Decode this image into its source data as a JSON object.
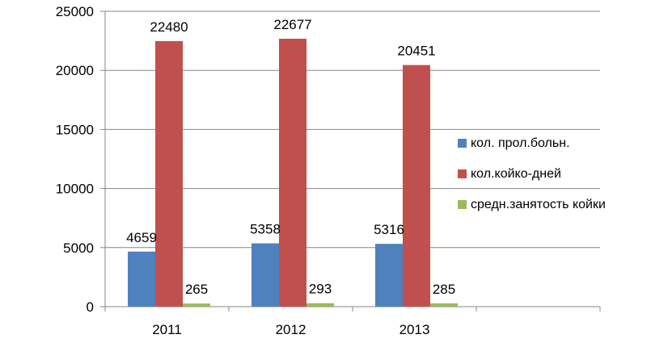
{
  "chart_data": {
    "type": "bar",
    "categories": [
      "2011",
      "2012",
      "2013",
      ""
    ],
    "series": [
      {
        "name": "кол. прол.больн.",
        "color": "#4F81BD",
        "values": [
          4659,
          5358,
          5316,
          null
        ]
      },
      {
        "name": "кол.койко-дней",
        "color": "#C0504D",
        "values": [
          22480,
          22677,
          20451,
          null
        ]
      },
      {
        "name": "средн.занятость койки",
        "color": "#9BBB59",
        "values": [
          265,
          293,
          285,
          null
        ]
      }
    ],
    "ylim": [
      0,
      25000
    ],
    "yticks": [
      0,
      5000,
      10000,
      15000,
      20000,
      25000
    ],
    "grid": true,
    "legend_position": "right",
    "data_labels": true
  }
}
